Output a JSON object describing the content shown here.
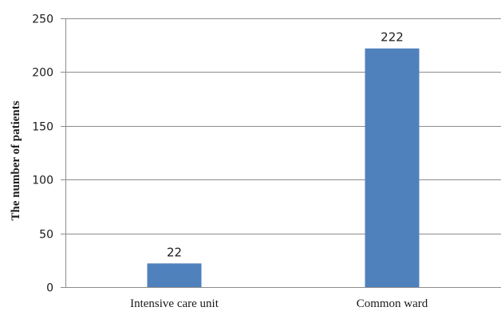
{
  "chart_data": {
    "type": "bar",
    "title": "",
    "xlabel": "",
    "ylabel": "The number of patients",
    "categories": [
      "Intensive care unit",
      "Common ward"
    ],
    "values": [
      22,
      222
    ],
    "data_labels": [
      "22",
      "222"
    ],
    "ylim": [
      0,
      250
    ],
    "yticks": [
      0,
      50,
      100,
      150,
      200,
      250
    ],
    "grid": true,
    "legend": "none",
    "bar_color": "#4f81bd"
  }
}
